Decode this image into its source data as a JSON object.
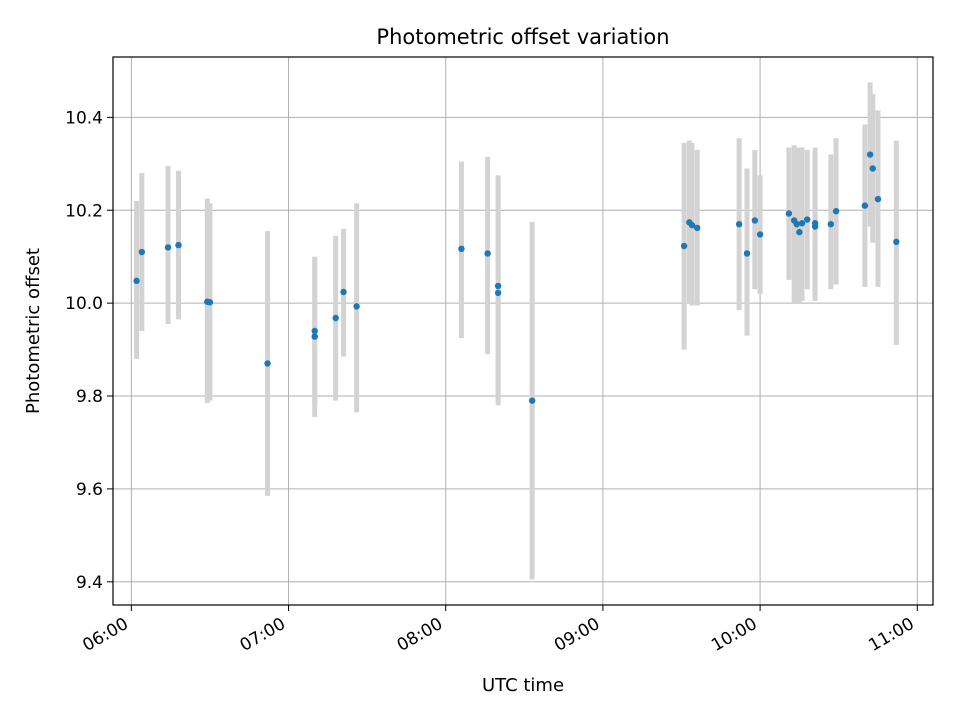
{
  "chart_data": {
    "type": "scatter",
    "title": "Photometric offset variation",
    "xlabel": "UTC time",
    "ylabel": "Photometric offset",
    "grid": true,
    "x_unit": "UTC time (HH:MM)",
    "xlim": [
      "05:53",
      "11:06"
    ],
    "ylim": [
      9.35,
      10.53
    ],
    "x_ticks": [
      "06:00",
      "07:00",
      "08:00",
      "09:00",
      "10:00",
      "11:00"
    ],
    "y_ticks": [
      9.4,
      9.6,
      9.8,
      10.0,
      10.2,
      10.4
    ],
    "y_tick_labels": [
      "9.4",
      "9.6",
      "9.8",
      "10.0",
      "10.2",
      "10.4"
    ],
    "colors": {
      "points": "#1f77b4",
      "error_bars": "#d3d3d3",
      "grid": "#b0b0b0"
    },
    "series": [
      {
        "points": [
          {
            "x": "06:02",
            "y": 10.048,
            "ylow": 9.88,
            "yhigh": 10.22
          },
          {
            "x": "06:04",
            "y": 10.11,
            "ylow": 9.94,
            "yhigh": 10.28
          },
          {
            "x": "06:14",
            "y": 10.12,
            "ylow": 9.955,
            "yhigh": 10.295
          },
          {
            "x": "06:18",
            "y": 10.125,
            "ylow": 9.965,
            "yhigh": 10.285
          },
          {
            "x": "06:29",
            "y": 10.003,
            "ylow": 9.785,
            "yhigh": 10.225
          },
          {
            "x": "06:30",
            "y": 10.002,
            "ylow": 9.79,
            "yhigh": 10.215
          },
          {
            "x": "06:52",
            "y": 9.87,
            "ylow": 9.585,
            "yhigh": 10.155
          },
          {
            "x": "07:10",
            "y": 9.928,
            "ylow": 9.755,
            "yhigh": 10.1
          },
          {
            "x": "07:10",
            "y": 9.94,
            "ylow": 9.78,
            "yhigh": 10.095
          },
          {
            "x": "07:18",
            "y": 9.968,
            "ylow": 9.79,
            "yhigh": 10.145
          },
          {
            "x": "07:21",
            "y": 10.024,
            "ylow": 9.885,
            "yhigh": 10.16
          },
          {
            "x": "07:26",
            "y": 9.993,
            "ylow": 9.765,
            "yhigh": 10.215
          },
          {
            "x": "08:06",
            "y": 10.117,
            "ylow": 9.925,
            "yhigh": 10.305
          },
          {
            "x": "08:16",
            "y": 10.107,
            "ylow": 9.89,
            "yhigh": 10.315
          },
          {
            "x": "08:20",
            "y": 10.037,
            "ylow": 9.79,
            "yhigh": 10.275
          },
          {
            "x": "08:20",
            "y": 10.022,
            "ylow": 9.78,
            "yhigh": 10.265
          },
          {
            "x": "08:33",
            "y": 9.79,
            "ylow": 9.405,
            "yhigh": 10.175
          },
          {
            "x": "09:31",
            "y": 10.123,
            "ylow": 9.9,
            "yhigh": 10.345
          },
          {
            "x": "09:33",
            "y": 10.174,
            "ylow": 10.0,
            "yhigh": 10.35
          },
          {
            "x": "09:34",
            "y": 10.168,
            "ylow": 9.995,
            "yhigh": 10.345
          },
          {
            "x": "09:36",
            "y": 10.162,
            "ylow": 9.995,
            "yhigh": 10.33
          },
          {
            "x": "09:52",
            "y": 10.17,
            "ylow": 9.985,
            "yhigh": 10.355
          },
          {
            "x": "09:55",
            "y": 10.107,
            "ylow": 9.93,
            "yhigh": 10.29
          },
          {
            "x": "09:58",
            "y": 10.178,
            "ylow": 10.03,
            "yhigh": 10.33
          },
          {
            "x": "10:00",
            "y": 10.148,
            "ylow": 10.02,
            "yhigh": 10.275
          },
          {
            "x": "10:11",
            "y": 10.193,
            "ylow": 10.05,
            "yhigh": 10.335
          },
          {
            "x": "10:13",
            "y": 10.178,
            "ylow": 10.0,
            "yhigh": 10.34
          },
          {
            "x": "10:14",
            "y": 10.17,
            "ylow": 10.0,
            "yhigh": 10.335
          },
          {
            "x": "10:15",
            "y": 10.153,
            "ylow": 10.0,
            "yhigh": 10.335
          },
          {
            "x": "10:16",
            "y": 10.172,
            "ylow": 10.005,
            "yhigh": 10.335
          },
          {
            "x": "10:18",
            "y": 10.18,
            "ylow": 10.03,
            "yhigh": 10.33
          },
          {
            "x": "10:21",
            "y": 10.165,
            "ylow": 10.005,
            "yhigh": 10.335
          },
          {
            "x": "10:21",
            "y": 10.172,
            "ylow": 10.01,
            "yhigh": 10.33
          },
          {
            "x": "10:27",
            "y": 10.17,
            "ylow": 10.03,
            "yhigh": 10.32
          },
          {
            "x": "10:29",
            "y": 10.198,
            "ylow": 10.04,
            "yhigh": 10.355
          },
          {
            "x": "10:40",
            "y": 10.21,
            "ylow": 10.035,
            "yhigh": 10.385
          },
          {
            "x": "10:42",
            "y": 10.32,
            "ylow": 10.165,
            "yhigh": 10.475
          },
          {
            "x": "10:43",
            "y": 10.29,
            "ylow": 10.13,
            "yhigh": 10.45
          },
          {
            "x": "10:45",
            "y": 10.224,
            "ylow": 10.035,
            "yhigh": 10.415
          },
          {
            "x": "10:52",
            "y": 10.132,
            "ylow": 9.91,
            "yhigh": 10.35
          }
        ]
      }
    ]
  }
}
